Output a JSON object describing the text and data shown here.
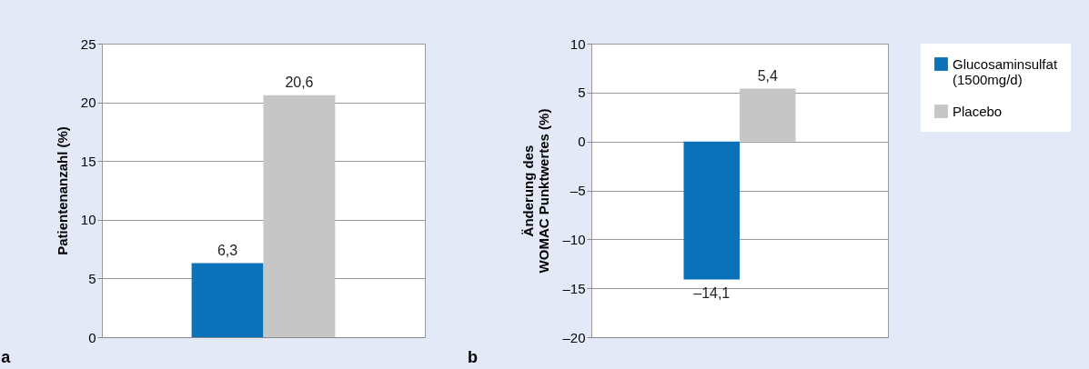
{
  "chart_data": [
    {
      "type": "bar",
      "ylabel": "Patientenanzahl (%)",
      "annotations": [
        "a"
      ],
      "categories": [
        null
      ],
      "series": [
        {
          "name": "Glucosaminsulfat (1500mg/d)",
          "color": "#0b72b9",
          "values": [
            6.3
          ],
          "value_labels": [
            "6,3"
          ]
        },
        {
          "name": "Placebo",
          "color": "#c6c6c6",
          "values": [
            20.6
          ],
          "value_labels": [
            "20,6"
          ]
        }
      ],
      "ylim": [
        0,
        25
      ],
      "yticks": [
        0,
        5,
        10,
        15,
        20,
        25
      ],
      "grid": "y",
      "legend": "right"
    },
    {
      "type": "bar",
      "ylabel": "Änderung des\nWOMAC Punktwertes (%)",
      "annotations": [
        "b"
      ],
      "categories": [
        null
      ],
      "series": [
        {
          "name": "Glucosaminsulfat (1500mg/d)",
          "color": "#0b72b9",
          "values": [
            -14.1
          ],
          "value_labels": [
            "–14,1"
          ]
        },
        {
          "name": "Placebo",
          "color": "#c6c6c6",
          "values": [
            5.4
          ],
          "value_labels": [
            "5,4"
          ]
        }
      ],
      "ylim": [
        -20,
        10
      ],
      "yticks": [
        {
          "value": -20,
          "label": "–20"
        },
        {
          "value": -15,
          "label": "–15"
        },
        {
          "value": -10,
          "label": "–10"
        },
        {
          "value": -5,
          "label": "–5"
        },
        0,
        5,
        10
      ],
      "grid": "y",
      "legend": "right"
    }
  ]
}
